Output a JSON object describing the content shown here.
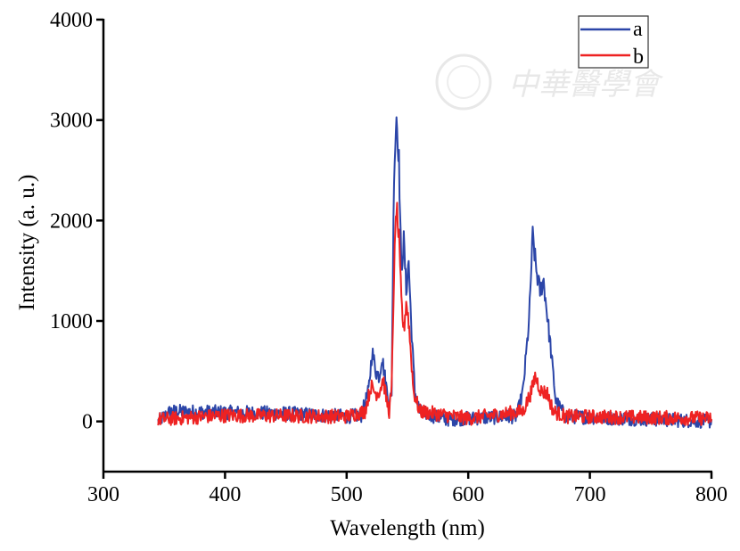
{
  "chart_data": {
    "type": "line",
    "title": "",
    "xlabel": "Wavelength (nm)",
    "ylabel": "Intensity (a. u.)",
    "xlim": [
      300,
      800
    ],
    "ylim": [
      -500,
      4000
    ],
    "xticks": [
      300,
      400,
      500,
      600,
      700,
      800
    ],
    "yticks": [
      0,
      1000,
      2000,
      3000,
      4000
    ],
    "grid": false,
    "legend_position": "top-right",
    "noise_amplitude": 70,
    "series": [
      {
        "name": "a",
        "color": "#2b45a8",
        "points": [
          [
            345,
            0
          ],
          [
            355,
            100
          ],
          [
            400,
            90
          ],
          [
            450,
            80
          ],
          [
            500,
            50
          ],
          [
            512,
            60
          ],
          [
            518,
            300
          ],
          [
            521,
            700
          ],
          [
            524,
            500
          ],
          [
            527,
            450
          ],
          [
            529,
            650
          ],
          [
            532,
            400
          ],
          [
            535,
            150
          ],
          [
            537,
            300
          ],
          [
            539,
            2500
          ],
          [
            541,
            3050
          ],
          [
            543,
            2600
          ],
          [
            545,
            1500
          ],
          [
            547,
            1800
          ],
          [
            549,
            1300
          ],
          [
            551,
            1600
          ],
          [
            553,
            1000
          ],
          [
            556,
            300
          ],
          [
            560,
            100
          ],
          [
            580,
            20
          ],
          [
            600,
            30
          ],
          [
            640,
            50
          ],
          [
            645,
            300
          ],
          [
            650,
            1000
          ],
          [
            653,
            1850
          ],
          [
            656,
            1500
          ],
          [
            659,
            1300
          ],
          [
            662,
            1400
          ],
          [
            668,
            700
          ],
          [
            672,
            200
          ],
          [
            680,
            50
          ],
          [
            800,
            0
          ]
        ]
      },
      {
        "name": "b",
        "color": "#ee2222",
        "points": [
          [
            345,
            20
          ],
          [
            400,
            60
          ],
          [
            500,
            50
          ],
          [
            515,
            100
          ],
          [
            520,
            350
          ],
          [
            524,
            280
          ],
          [
            527,
            300
          ],
          [
            530,
            420
          ],
          [
            533,
            200
          ],
          [
            535,
            100
          ],
          [
            537,
            300
          ],
          [
            539,
            1500
          ],
          [
            541,
            2150
          ],
          [
            543,
            1800
          ],
          [
            545,
            1200
          ],
          [
            547,
            900
          ],
          [
            549,
            1200
          ],
          [
            551,
            1000
          ],
          [
            555,
            300
          ],
          [
            560,
            100
          ],
          [
            600,
            30
          ],
          [
            645,
            100
          ],
          [
            652,
            300
          ],
          [
            655,
            450
          ],
          [
            660,
            300
          ],
          [
            665,
            280
          ],
          [
            670,
            100
          ],
          [
            680,
            50
          ],
          [
            800,
            30
          ]
        ]
      }
    ]
  },
  "watermark": "中華醫學會"
}
